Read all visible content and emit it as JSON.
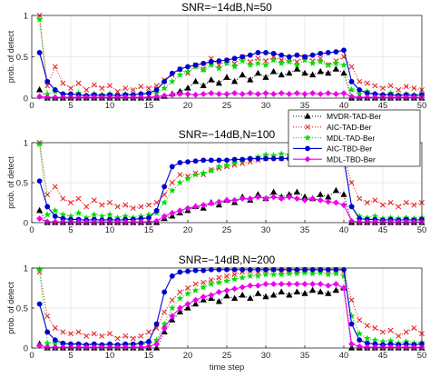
{
  "chart_data": [
    {
      "type": "line",
      "title": "SNR=−14dB,N=50",
      "ylabel": "prob. of detect",
      "xlabel": "",
      "xlim": [
        0,
        50
      ],
      "ylim": [
        0,
        1
      ],
      "xticks": [
        0,
        5,
        10,
        15,
        20,
        25,
        30,
        35,
        40,
        45,
        50
      ],
      "yticks": [
        0,
        0.5,
        1
      ],
      "grid": true,
      "x": [
        1,
        2,
        3,
        4,
        5,
        6,
        7,
        8,
        9,
        10,
        11,
        12,
        13,
        14,
        15,
        16,
        17,
        18,
        19,
        20,
        21,
        22,
        23,
        24,
        25,
        26,
        27,
        28,
        29,
        30,
        31,
        32,
        33,
        34,
        35,
        36,
        37,
        38,
        39,
        40,
        41,
        42,
        43,
        44,
        45,
        46,
        47,
        48,
        49,
        50
      ],
      "series": [
        {
          "name": "MVDR-TAD-Ber",
          "values": [
            0.1,
            0,
            0,
            0,
            0,
            0,
            0,
            0,
            0,
            0,
            0,
            0,
            0,
            0,
            0,
            0,
            0.02,
            0.05,
            0.08,
            0.12,
            0.2,
            0.15,
            0.22,
            0.18,
            0.25,
            0.2,
            0.28,
            0.22,
            0.3,
            0.25,
            0.32,
            0.28,
            0.3,
            0.35,
            0.3,
            0.28,
            0.32,
            0.3,
            0.35,
            0.3,
            0,
            0,
            0,
            0,
            0,
            0,
            0,
            0,
            0,
            0
          ]
        },
        {
          "name": "AIC-TAD-Ber",
          "values": [
            1,
            0.15,
            0.38,
            0.18,
            0.12,
            0.18,
            0.1,
            0.16,
            0.12,
            0.15,
            0.08,
            0.12,
            0.1,
            0.14,
            0.12,
            0.15,
            0.22,
            0.28,
            0.35,
            0.3,
            0.4,
            0.35,
            0.48,
            0.4,
            0.45,
            0.42,
            0.5,
            0.44,
            0.48,
            0.45,
            0.5,
            0.46,
            0.48,
            0.44,
            0.5,
            0.45,
            0.48,
            0.4,
            0.45,
            0.5,
            0.38,
            0.2,
            0.18,
            0.15,
            0.12,
            0.15,
            0.1,
            0.14,
            0.12,
            0.1
          ]
        },
        {
          "name": "MDL-TAD-Ber",
          "values": [
            0.95,
            0.05,
            0.08,
            0.05,
            0.04,
            0.06,
            0.03,
            0.05,
            0.04,
            0.05,
            0.03,
            0.05,
            0.04,
            0.05,
            0.04,
            0.06,
            0.12,
            0.2,
            0.28,
            0.32,
            0.38,
            0.34,
            0.4,
            0.36,
            0.42,
            0.38,
            0.45,
            0.4,
            0.42,
            0.4,
            0.46,
            0.42,
            0.44,
            0.4,
            0.46,
            0.42,
            0.44,
            0.4,
            0.42,
            0.4,
            0.1,
            0.05,
            0.08,
            0.05,
            0.04,
            0.06,
            0.04,
            0.05,
            0.04,
            0.05
          ]
        },
        {
          "name": "AIC-TBD-Ber",
          "values": [
            0.55,
            0.2,
            0.1,
            0.05,
            0.05,
            0.04,
            0.03,
            0.04,
            0.03,
            0.04,
            0.03,
            0.04,
            0.04,
            0.05,
            0.06,
            0.1,
            0.2,
            0.3,
            0.35,
            0.38,
            0.4,
            0.42,
            0.44,
            0.45,
            0.46,
            0.48,
            0.5,
            0.52,
            0.55,
            0.55,
            0.54,
            0.52,
            0.5,
            0.52,
            0.5,
            0.52,
            0.54,
            0.55,
            0.56,
            0.58,
            0.2,
            0.1,
            0.06,
            0.05,
            0.04,
            0.04,
            0.03,
            0.04,
            0.03,
            0.04
          ]
        },
        {
          "name": "MDL-TBD-Ber",
          "values": [
            0.02,
            0.01,
            0.01,
            0.01,
            0.01,
            0.01,
            0.01,
            0.01,
            0.01,
            0.01,
            0.01,
            0.01,
            0.01,
            0.01,
            0.01,
            0.02,
            0.03,
            0.04,
            0.05,
            0.05,
            0.04,
            0.05,
            0.06,
            0.05,
            0.05,
            0.06,
            0.05,
            0.06,
            0.05,
            0.06,
            0.05,
            0.06,
            0.05,
            0.06,
            0.05,
            0.06,
            0.05,
            0.06,
            0.05,
            0.06,
            0.02,
            0.01,
            0.01,
            0.01,
            0.01,
            0.01,
            0.01,
            0.01,
            0.01,
            0.01
          ]
        }
      ]
    },
    {
      "type": "line",
      "title": "SNR=−14dB,N=100",
      "ylabel": "prob. of detect",
      "xlabel": "",
      "xlim": [
        0,
        50
      ],
      "ylim": [
        0,
        1
      ],
      "xticks": [
        0,
        5,
        10,
        15,
        20,
        25,
        30,
        35,
        40,
        45,
        50
      ],
      "yticks": [
        0,
        0.5,
        1
      ],
      "grid": true,
      "legend": {
        "position": "top-right",
        "entries": [
          "MVDR-TAD-Ber",
          "AIC-TAD-Ber",
          "MDL-TAD-Ber",
          "AIC-TBD-Ber",
          "MDL-TBD-Ber"
        ]
      },
      "x": [
        1,
        2,
        3,
        4,
        5,
        6,
        7,
        8,
        9,
        10,
        11,
        12,
        13,
        14,
        15,
        16,
        17,
        18,
        19,
        20,
        21,
        22,
        23,
        24,
        25,
        26,
        27,
        28,
        29,
        30,
        31,
        32,
        33,
        34,
        35,
        36,
        37,
        38,
        39,
        40,
        41,
        42,
        43,
        44,
        45,
        46,
        47,
        48,
        49,
        50
      ],
      "series": [
        {
          "name": "MVDR-TAD-Ber",
          "values": [
            0.15,
            0,
            0,
            0,
            0,
            0,
            0,
            0,
            0,
            0,
            0,
            0,
            0,
            0,
            0,
            0,
            0.05,
            0.08,
            0.12,
            0.15,
            0.2,
            0.18,
            0.25,
            0.22,
            0.28,
            0.25,
            0.32,
            0.28,
            0.35,
            0.3,
            0.38,
            0.32,
            0.35,
            0.38,
            0.32,
            0.3,
            0.35,
            0.32,
            0.4,
            0.35,
            0,
            0,
            0,
            0,
            0,
            0,
            0,
            0,
            0,
            0
          ]
        },
        {
          "name": "AIC-TAD-Ber",
          "values": [
            1,
            0.35,
            0.45,
            0.3,
            0.25,
            0.3,
            0.2,
            0.28,
            0.22,
            0.25,
            0.2,
            0.22,
            0.18,
            0.2,
            0.22,
            0.25,
            0.35,
            0.5,
            0.6,
            0.58,
            0.62,
            0.6,
            0.66,
            0.68,
            0.7,
            0.72,
            0.74,
            0.76,
            0.78,
            0.8,
            0.82,
            0.8,
            0.82,
            0.84,
            0.82,
            0.8,
            0.82,
            0.78,
            0.8,
            0.82,
            0.5,
            0.3,
            0.25,
            0.28,
            0.22,
            0.25,
            0.2,
            0.25,
            0.22,
            0.25
          ]
        },
        {
          "name": "MDL-TAD-Ber",
          "values": [
            0.98,
            0.1,
            0.15,
            0.1,
            0.08,
            0.12,
            0.06,
            0.1,
            0.08,
            0.1,
            0.06,
            0.08,
            0.06,
            0.08,
            0.1,
            0.12,
            0.25,
            0.4,
            0.5,
            0.55,
            0.6,
            0.62,
            0.65,
            0.7,
            0.72,
            0.75,
            0.78,
            0.8,
            0.82,
            0.85,
            0.84,
            0.86,
            0.85,
            0.88,
            0.85,
            0.84,
            0.85,
            0.82,
            0.84,
            0.8,
            0.2,
            0.08,
            0.06,
            0.08,
            0.05,
            0.06,
            0.05,
            0.06,
            0.05,
            0.06
          ]
        },
        {
          "name": "AIC-TBD-Ber",
          "values": [
            0.52,
            0.2,
            0.08,
            0.05,
            0.04,
            0.04,
            0.03,
            0.04,
            0.03,
            0.04,
            0.03,
            0.04,
            0.04,
            0.05,
            0.06,
            0.15,
            0.45,
            0.7,
            0.75,
            0.76,
            0.77,
            0.78,
            0.78,
            0.78,
            0.78,
            0.79,
            0.79,
            0.8,
            0.8,
            0.8,
            0.8,
            0.8,
            0.8,
            0.8,
            0.8,
            0.8,
            0.8,
            0.8,
            0.8,
            0.8,
            0.2,
            0.05,
            0.04,
            0.04,
            0.03,
            0.04,
            0.03,
            0.04,
            0.03,
            0.04
          ]
        },
        {
          "name": "MDL-TBD-Ber",
          "values": [
            0.05,
            0.01,
            0.01,
            0.01,
            0.01,
            0.01,
            0.01,
            0.01,
            0.01,
            0.01,
            0.01,
            0.01,
            0.01,
            0.01,
            0.01,
            0.02,
            0.08,
            0.12,
            0.15,
            0.18,
            0.2,
            0.22,
            0.24,
            0.26,
            0.28,
            0.28,
            0.3,
            0.3,
            0.32,
            0.3,
            0.32,
            0.3,
            0.32,
            0.3,
            0.28,
            0.3,
            0.28,
            0.26,
            0.25,
            0.22,
            0.02,
            0.01,
            0.01,
            0.01,
            0.01,
            0.01,
            0.01,
            0.01,
            0.01,
            0.01
          ]
        }
      ]
    },
    {
      "type": "line",
      "title": "SNR=−14dB,N=200",
      "ylabel": "prob. of detect",
      "xlabel": "time step",
      "xlim": [
        0,
        50
      ],
      "ylim": [
        0,
        1
      ],
      "xticks": [
        0,
        5,
        10,
        15,
        20,
        25,
        30,
        35,
        40,
        45,
        50
      ],
      "yticks": [
        0,
        0.5,
        1
      ],
      "grid": true,
      "x": [
        1,
        2,
        3,
        4,
        5,
        6,
        7,
        8,
        9,
        10,
        11,
        12,
        13,
        14,
        15,
        16,
        17,
        18,
        19,
        20,
        21,
        22,
        23,
        24,
        25,
        26,
        27,
        28,
        29,
        30,
        31,
        32,
        33,
        34,
        35,
        36,
        37,
        38,
        39,
        40,
        41,
        42,
        43,
        44,
        45,
        46,
        47,
        48,
        49,
        50
      ],
      "series": [
        {
          "name": "MVDR-TAD-Ber",
          "values": [
            0.05,
            0,
            0,
            0,
            0,
            0,
            0,
            0,
            0,
            0,
            0,
            0,
            0,
            0,
            0,
            0,
            0.2,
            0.35,
            0.45,
            0.5,
            0.55,
            0.6,
            0.62,
            0.58,
            0.65,
            0.62,
            0.66,
            0.62,
            0.68,
            0.64,
            0.66,
            0.7,
            0.66,
            0.7,
            0.68,
            0.72,
            0.7,
            0.68,
            0.72,
            0.75,
            0,
            0,
            0,
            0,
            0,
            0,
            0,
            0,
            0,
            0
          ]
        },
        {
          "name": "AIC-TAD-Ber",
          "values": [
            0.95,
            0.4,
            0.25,
            0.2,
            0.18,
            0.2,
            0.15,
            0.18,
            0.15,
            0.18,
            0.12,
            0.15,
            0.12,
            0.15,
            0.2,
            0.25,
            0.45,
            0.6,
            0.7,
            0.75,
            0.8,
            0.82,
            0.85,
            0.88,
            0.9,
            0.92,
            0.95,
            0.96,
            0.95,
            0.97,
            0.98,
            0.96,
            0.98,
            0.97,
            0.98,
            0.96,
            0.98,
            0.97,
            0.98,
            0.96,
            0.6,
            0.35,
            0.28,
            0.25,
            0.2,
            0.22,
            0.15,
            0.2,
            0.25,
            0.18
          ]
        },
        {
          "name": "MDL-TAD-Ber",
          "values": [
            0.98,
            0.06,
            0.06,
            0.04,
            0.04,
            0.05,
            0.03,
            0.04,
            0.03,
            0.04,
            0.03,
            0.04,
            0.03,
            0.04,
            0.05,
            0.1,
            0.3,
            0.5,
            0.62,
            0.68,
            0.72,
            0.76,
            0.8,
            0.82,
            0.84,
            0.86,
            0.88,
            0.9,
            0.9,
            0.92,
            0.92,
            0.92,
            0.93,
            0.93,
            0.94,
            0.93,
            0.94,
            0.92,
            0.93,
            0.9,
            0.4,
            0.18,
            0.12,
            0.1,
            0.08,
            0.09,
            0.06,
            0.08,
            0.06,
            0.07
          ]
        },
        {
          "name": "AIC-TBD-Ber",
          "values": [
            0.55,
            0.2,
            0.1,
            0.06,
            0.05,
            0.05,
            0.04,
            0.05,
            0.04,
            0.05,
            0.04,
            0.05,
            0.05,
            0.06,
            0.08,
            0.3,
            0.7,
            0.9,
            0.95,
            0.96,
            0.97,
            0.97,
            0.98,
            0.98,
            0.98,
            0.98,
            0.98,
            0.98,
            0.98,
            0.98,
            0.98,
            0.98,
            0.98,
            0.98,
            0.98,
            0.98,
            0.98,
            0.98,
            0.98,
            0.98,
            0.3,
            0.1,
            0.06,
            0.05,
            0.04,
            0.05,
            0.04,
            0.05,
            0.04,
            0.05
          ]
        },
        {
          "name": "MDL-TBD-Ber",
          "values": [
            0.03,
            0.01,
            0.01,
            0.01,
            0.01,
            0.01,
            0.01,
            0.01,
            0.01,
            0.01,
            0.01,
            0.01,
            0.01,
            0.01,
            0.02,
            0.05,
            0.25,
            0.4,
            0.5,
            0.55,
            0.6,
            0.64,
            0.66,
            0.7,
            0.72,
            0.74,
            0.76,
            0.78,
            0.78,
            0.8,
            0.8,
            0.8,
            0.8,
            0.8,
            0.8,
            0.8,
            0.8,
            0.78,
            0.8,
            0.75,
            0.05,
            0.02,
            0.01,
            0.01,
            0.01,
            0.01,
            0.01,
            0.01,
            0.01,
            0.01
          ]
        }
      ]
    }
  ],
  "series_styles": {
    "MVDR-TAD-Ber": {
      "color": "#000000",
      "marker": "triangle",
      "dash": "1,2"
    },
    "AIC-TAD-Ber": {
      "color": "#e0201f",
      "marker": "x",
      "dash": "1,2"
    },
    "MDL-TAD-Ber": {
      "color": "#00dd00",
      "marker": "star",
      "dash": "1,2"
    },
    "AIC-TBD-Ber": {
      "color": "#0000d0",
      "marker": "circle",
      "dash": ""
    },
    "MDL-TBD-Ber": {
      "color": "#ee00ee",
      "marker": "diamond",
      "dash": ""
    }
  }
}
